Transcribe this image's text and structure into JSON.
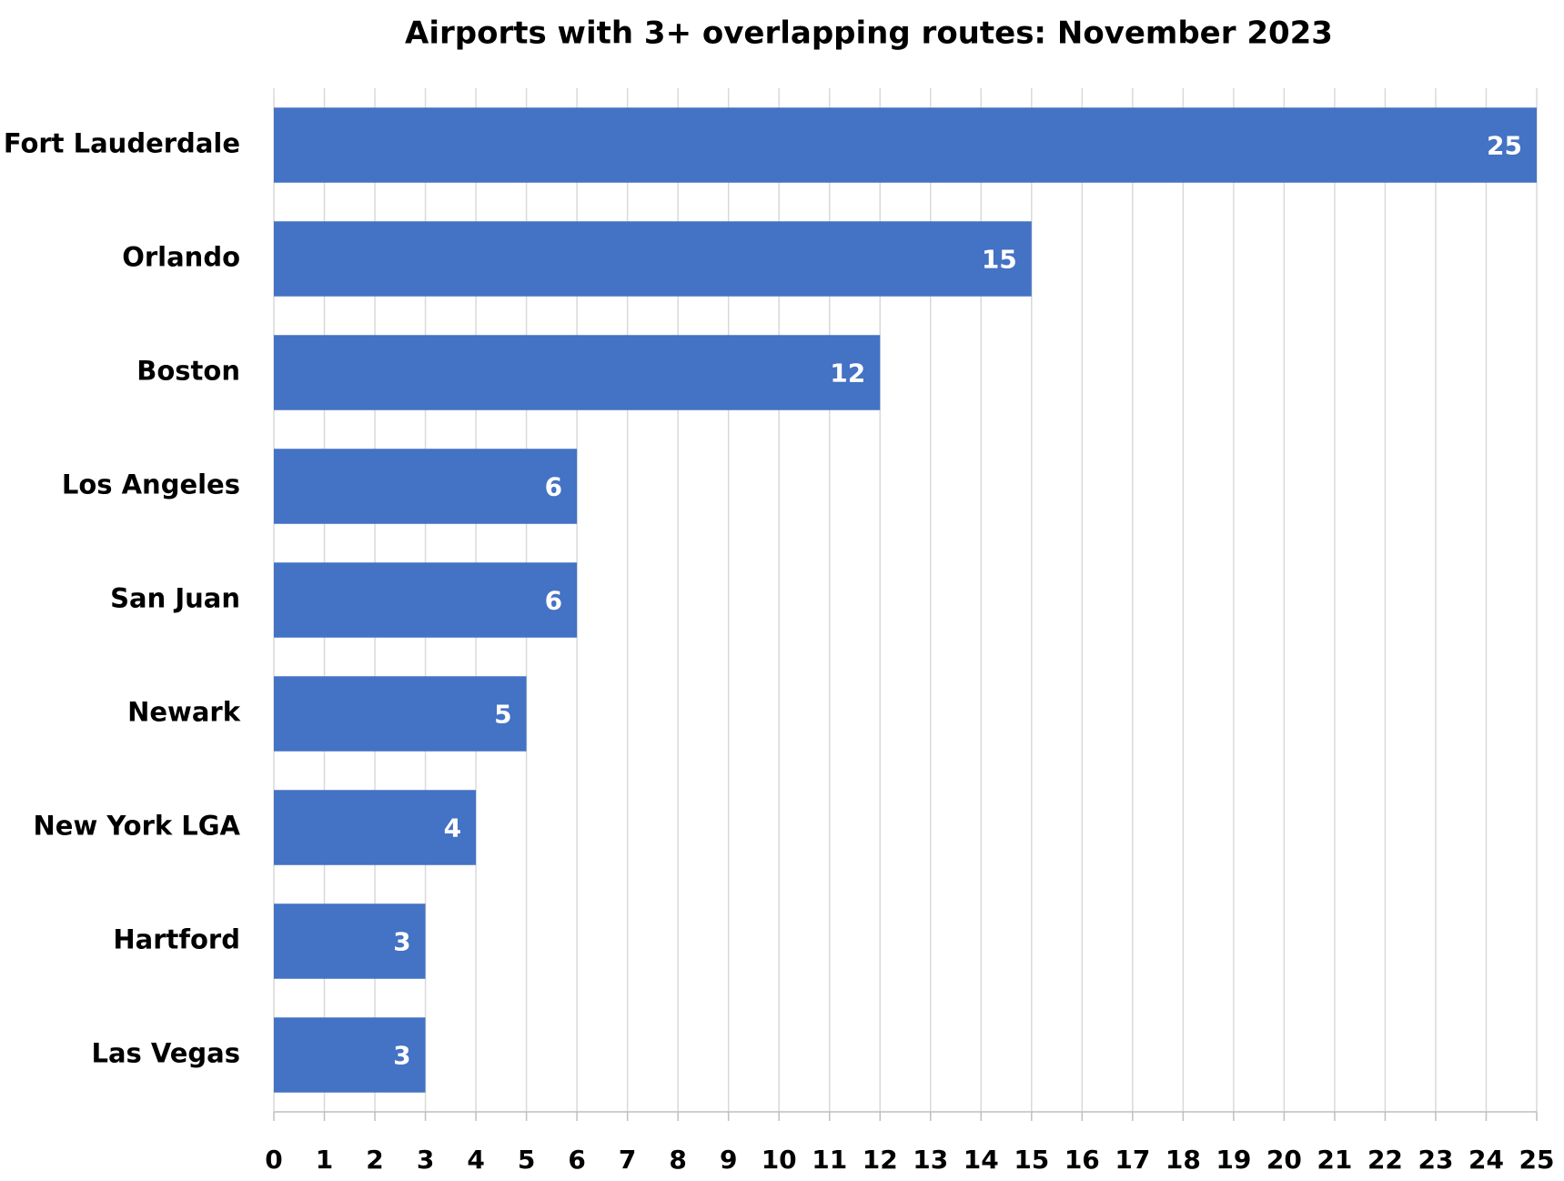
{
  "chart_data": {
    "type": "bar",
    "orientation": "horizontal",
    "title": "Airports with 3+ overlapping routes: November 2023",
    "categories": [
      "Fort Lauderdale",
      "Orlando",
      "Boston",
      "Los Angeles",
      "San Juan",
      "Newark",
      "New York LGA",
      "Hartford",
      "Las Vegas"
    ],
    "values": [
      25,
      15,
      12,
      6,
      6,
      5,
      4,
      3,
      3
    ],
    "color": "#4472c4",
    "xlim": [
      0,
      25
    ],
    "xticks": [
      0,
      1,
      2,
      3,
      4,
      5,
      6,
      7,
      8,
      9,
      10,
      11,
      12,
      13,
      14,
      15,
      16,
      17,
      18,
      19,
      20,
      21,
      22,
      23,
      24,
      25
    ],
    "grid": true,
    "data_labels": true
  }
}
